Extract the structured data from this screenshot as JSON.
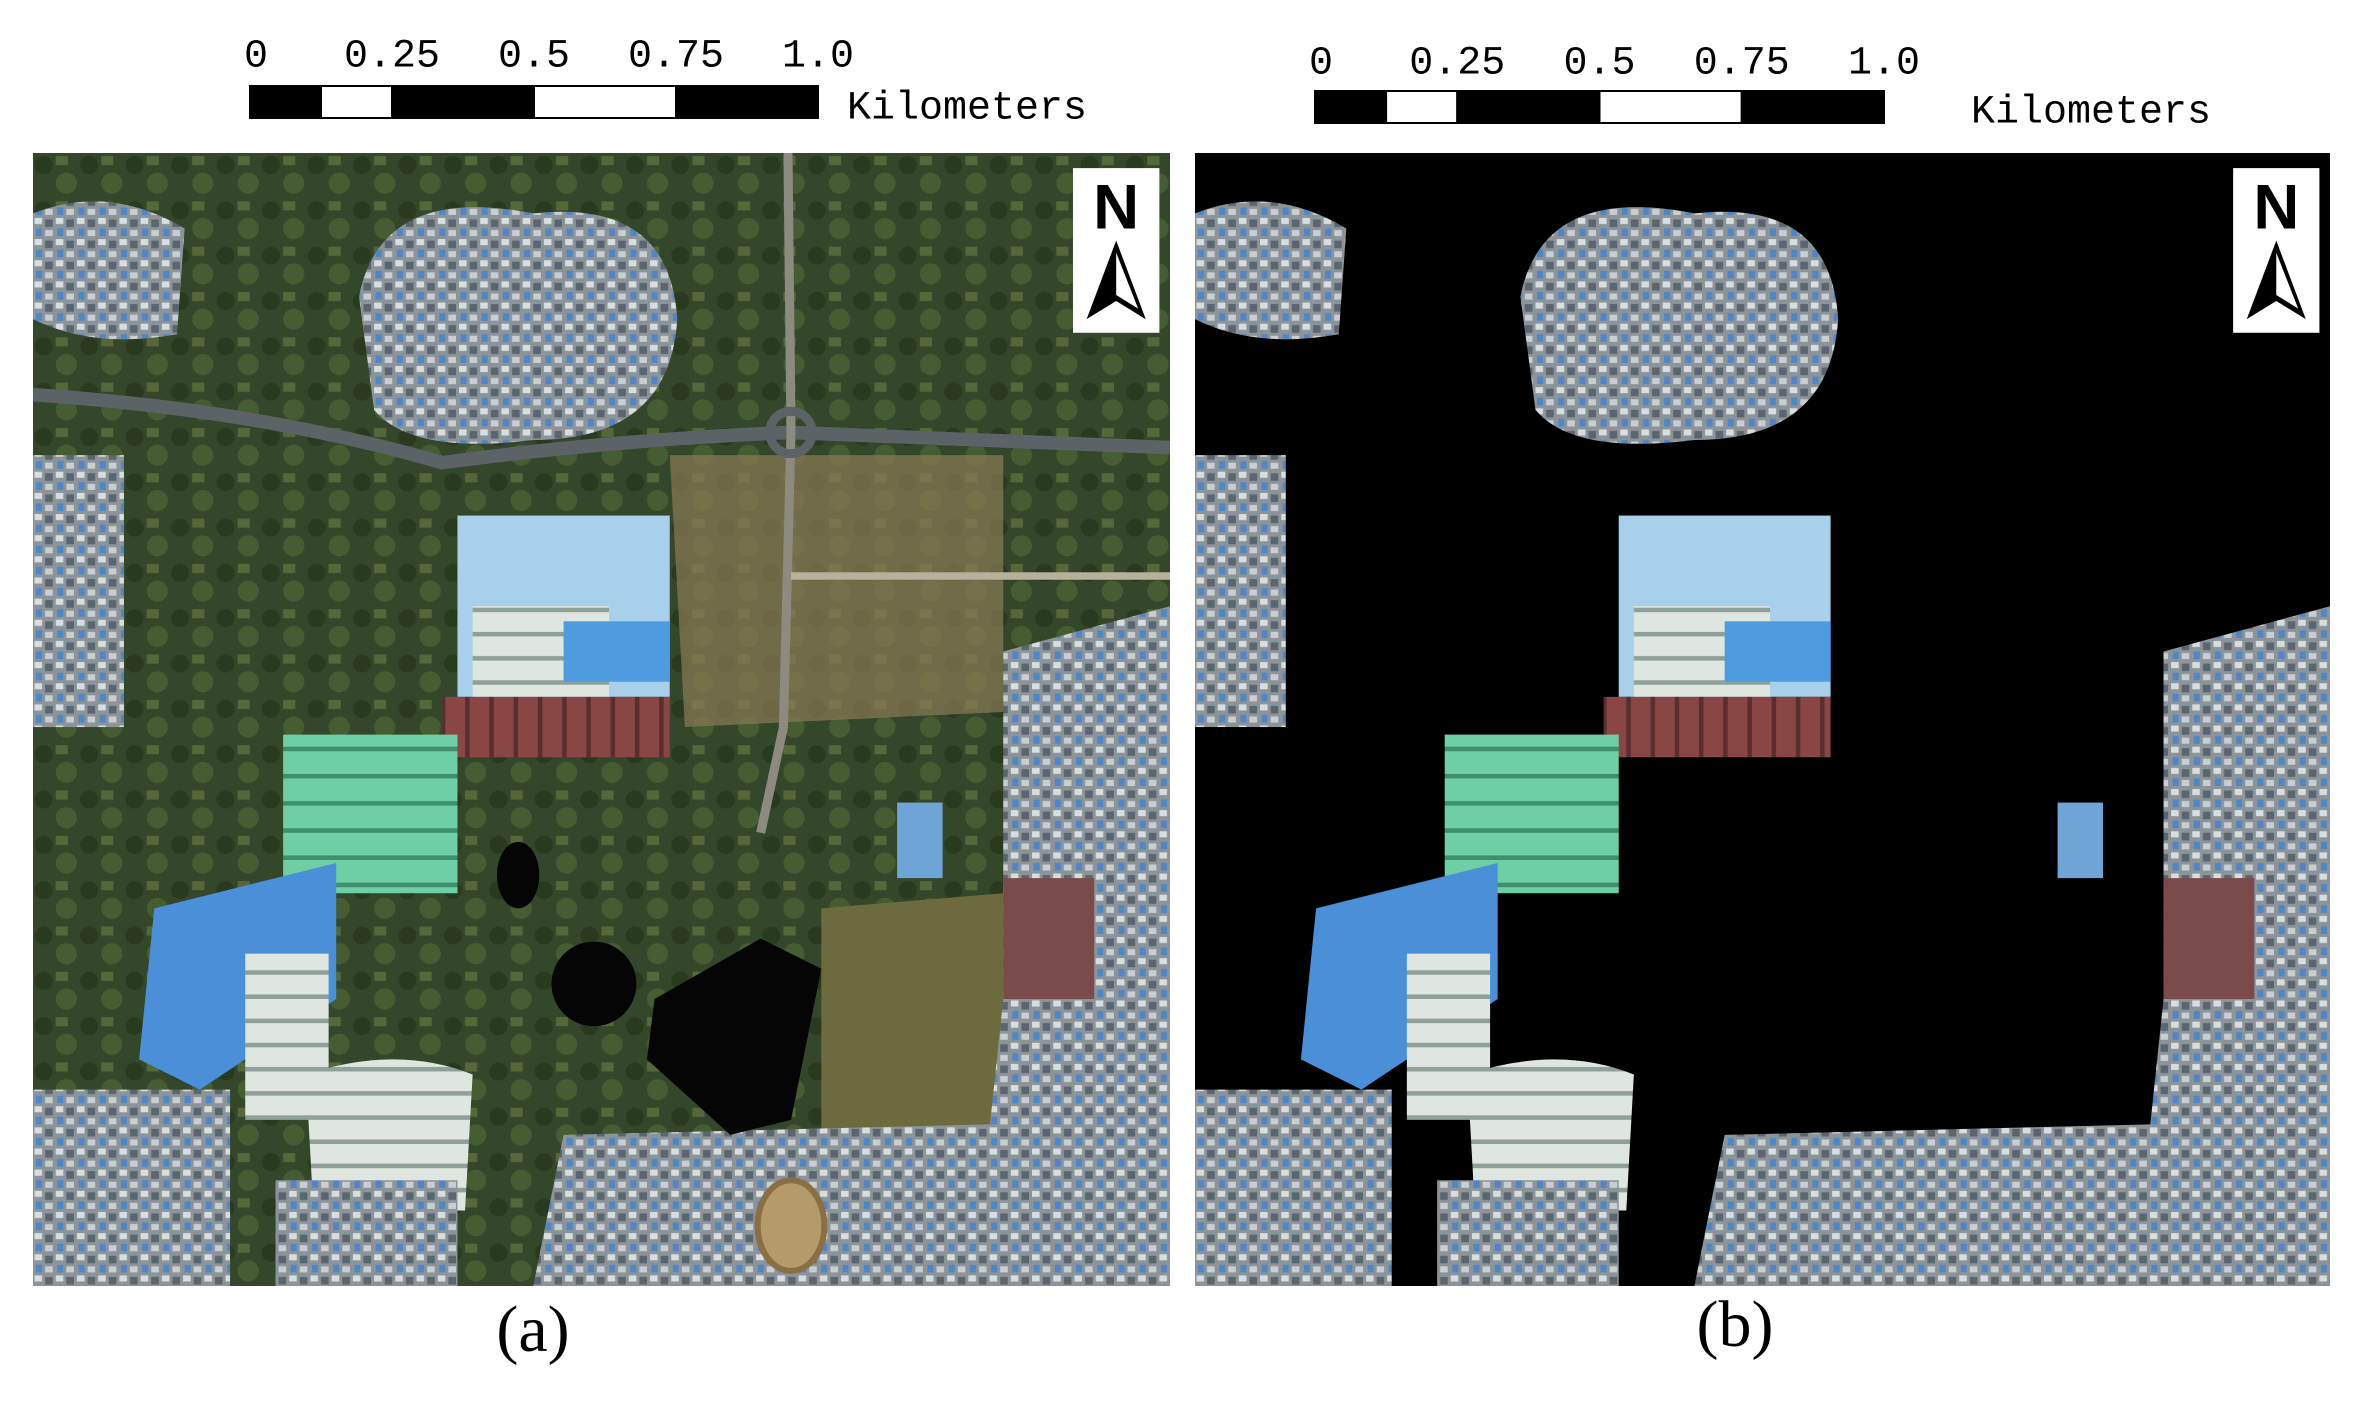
{
  "panels": [
    {
      "scale_labels": [
        "0",
        "0.25",
        "0.5",
        "0.75",
        "1.0"
      ],
      "unit": "Kilometers",
      "north": "N",
      "caption": "(a)"
    },
    {
      "scale_labels": [
        "0",
        "0.25",
        "0.5",
        "0.75",
        "1.0"
      ],
      "unit": "Kilometers",
      "north": "N",
      "caption": "(b)"
    }
  ]
}
